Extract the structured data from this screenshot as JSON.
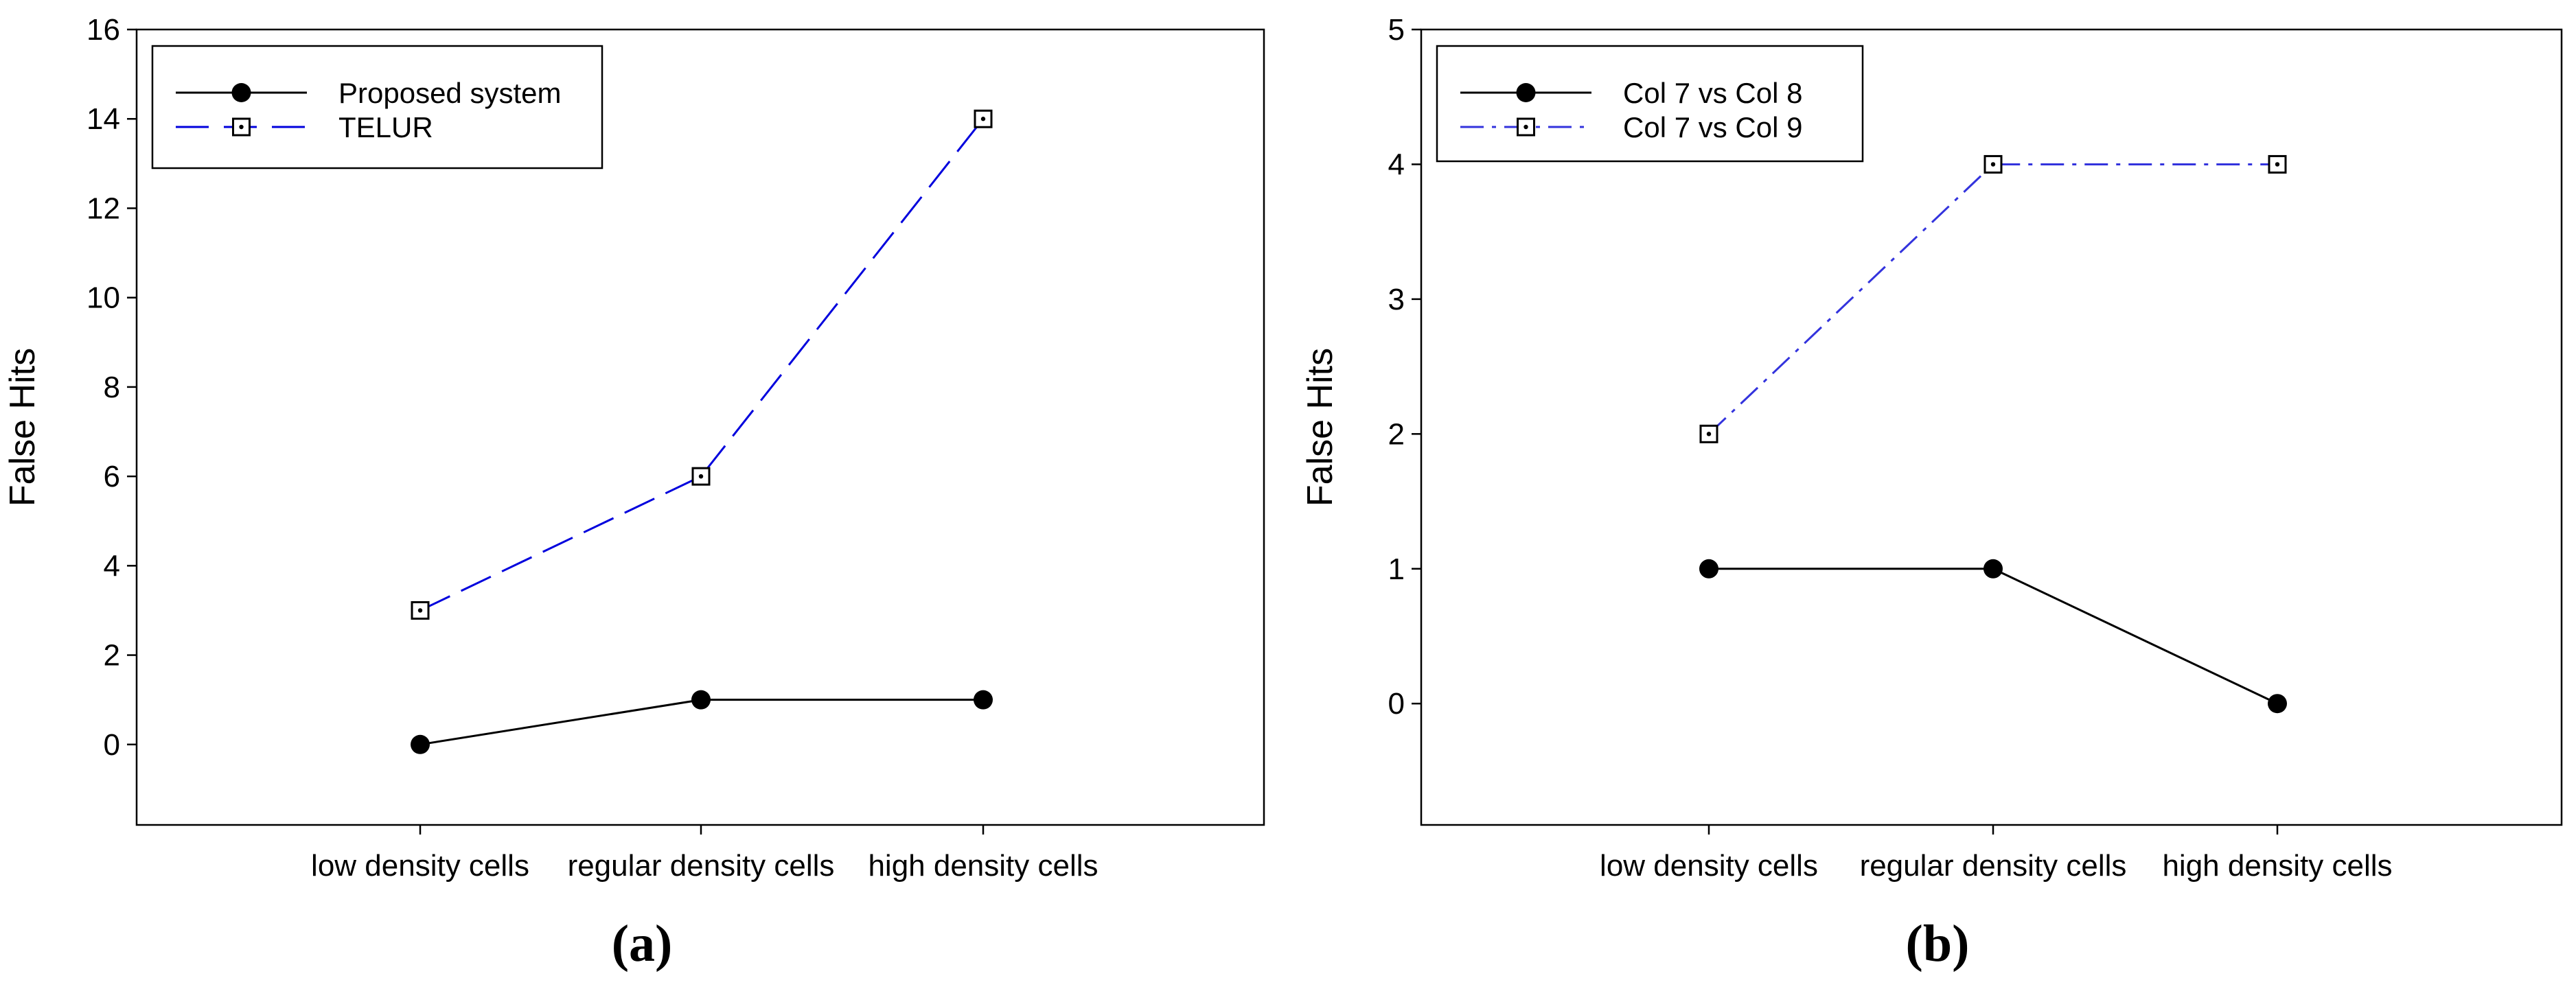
{
  "chart_data": [
    {
      "type": "line",
      "panel_label": "(a)",
      "categories": [
        "low density cells",
        "regular density cells",
        "high density cells"
      ],
      "ylabel": "False Hits",
      "xlabel": "",
      "ylim": [
        -1.8,
        16
      ],
      "yticks": [
        0,
        2,
        4,
        6,
        8,
        10,
        12,
        14,
        16
      ],
      "legend_position": "top-left",
      "series": [
        {
          "name": "Proposed system",
          "values": [
            0,
            1,
            1
          ],
          "color": "#000000",
          "marker": "filled-circle",
          "line_style": "solid"
        },
        {
          "name": "TELUR",
          "values": [
            3,
            6,
            14
          ],
          "color": "#0000dd",
          "marker": "dotted-square",
          "line_style": "dashed"
        }
      ]
    },
    {
      "type": "line",
      "panel_label": "(b)",
      "categories": [
        "low density cells",
        "regular density cells",
        "high density cells"
      ],
      "ylabel": "False Hits",
      "xlabel": "",
      "ylim": [
        -0.9,
        5
      ],
      "yticks": [
        0,
        1,
        2,
        3,
        4,
        5
      ],
      "legend_position": "top-left",
      "series": [
        {
          "name": "Col 7 vs Col 8",
          "values": [
            1,
            1,
            0
          ],
          "color": "#000000",
          "marker": "filled-circle",
          "line_style": "solid"
        },
        {
          "name": "Col 7 vs Col 9",
          "values": [
            2,
            4,
            4
          ],
          "color": "#3333dd",
          "marker": "dotted-square",
          "line_style": "dashdot"
        }
      ]
    }
  ]
}
